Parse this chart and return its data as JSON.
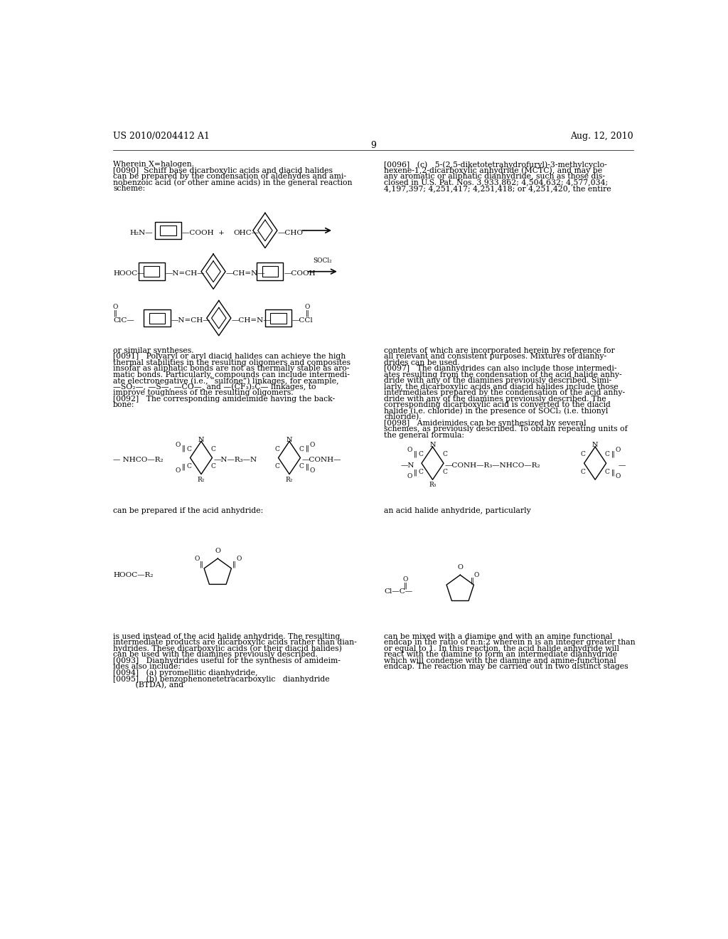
{
  "background_color": "#ffffff",
  "header_left": "US 2010/0204412 A1",
  "header_right": "Aug. 12, 2010",
  "page_number": "9"
}
